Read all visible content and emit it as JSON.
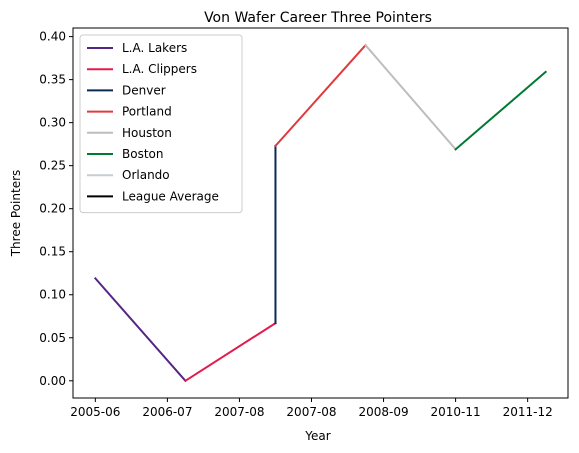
{
  "chart_data": {
    "type": "line",
    "title": "Von Wafer Career Three Pointers",
    "xlabel": "Year",
    "ylabel": "Three Pointers",
    "x_categories": [
      "2005-06",
      "2006-07",
      "2007-08",
      "2007-08",
      "2008-09",
      "2010-11",
      "2011-12"
    ],
    "ylim": [
      -0.02,
      0.41
    ],
    "yticks": [
      "0.00",
      "0.05",
      "0.10",
      "0.15",
      "0.20",
      "0.25",
      "0.30",
      "0.35",
      "0.40"
    ],
    "grid": false,
    "legend_position": "top-left",
    "series": [
      {
        "name": "L.A. Lakers",
        "color": "#552583",
        "points": [
          [
            0,
            0.119
          ],
          [
            1.25,
            0.0
          ]
        ]
      },
      {
        "name": "L.A. Clippers",
        "color": "#e31b4e",
        "points": [
          [
            1.25,
            0.0
          ],
          [
            2.5,
            0.067
          ]
        ]
      },
      {
        "name": "Denver",
        "color": "#0e2a53",
        "points": [
          [
            2.5,
            0.067
          ],
          [
            2.5,
            0.273
          ]
        ]
      },
      {
        "name": "Portland",
        "color": "#e03a3e",
        "points": [
          [
            2.5,
            0.273
          ],
          [
            3.75,
            0.39
          ]
        ]
      },
      {
        "name": "Houston",
        "color": "#bdbdbd",
        "points": [
          [
            3.75,
            0.39
          ],
          [
            5.0,
            0.269
          ]
        ]
      },
      {
        "name": "Boston",
        "color": "#007a33",
        "points": [
          [
            5.0,
            0.269
          ],
          [
            6.25,
            0.359
          ]
        ]
      },
      {
        "name": "Orlando",
        "color": "#c4ced4",
        "points": []
      },
      {
        "name": "League Average",
        "color": "#000000",
        "points": []
      }
    ]
  }
}
